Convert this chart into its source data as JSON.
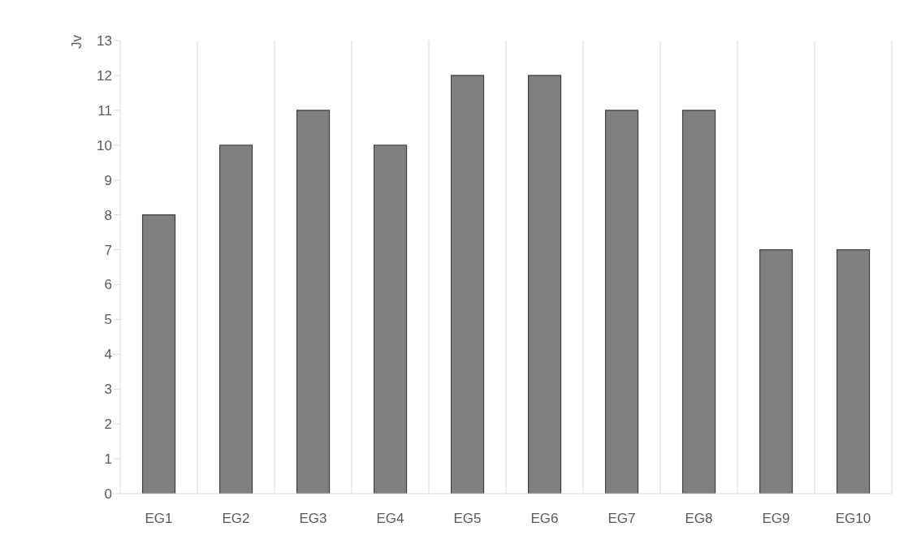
{
  "chart_data": {
    "type": "bar",
    "ylabel": "Jv",
    "categories": [
      "EG1",
      "EG2",
      "EG3",
      "EG4",
      "EG5",
      "EG6",
      "EG7",
      "EG8",
      "EG9",
      "EG10"
    ],
    "values": [
      8,
      10,
      11,
      10,
      12,
      12,
      11,
      11,
      7,
      7
    ],
    "color": "#808080",
    "ylim": [
      0,
      13
    ],
    "yticks": [
      0,
      1,
      2,
      3,
      4,
      5,
      6,
      7,
      8,
      9,
      10,
      11,
      12,
      13
    ],
    "grid": "x"
  }
}
